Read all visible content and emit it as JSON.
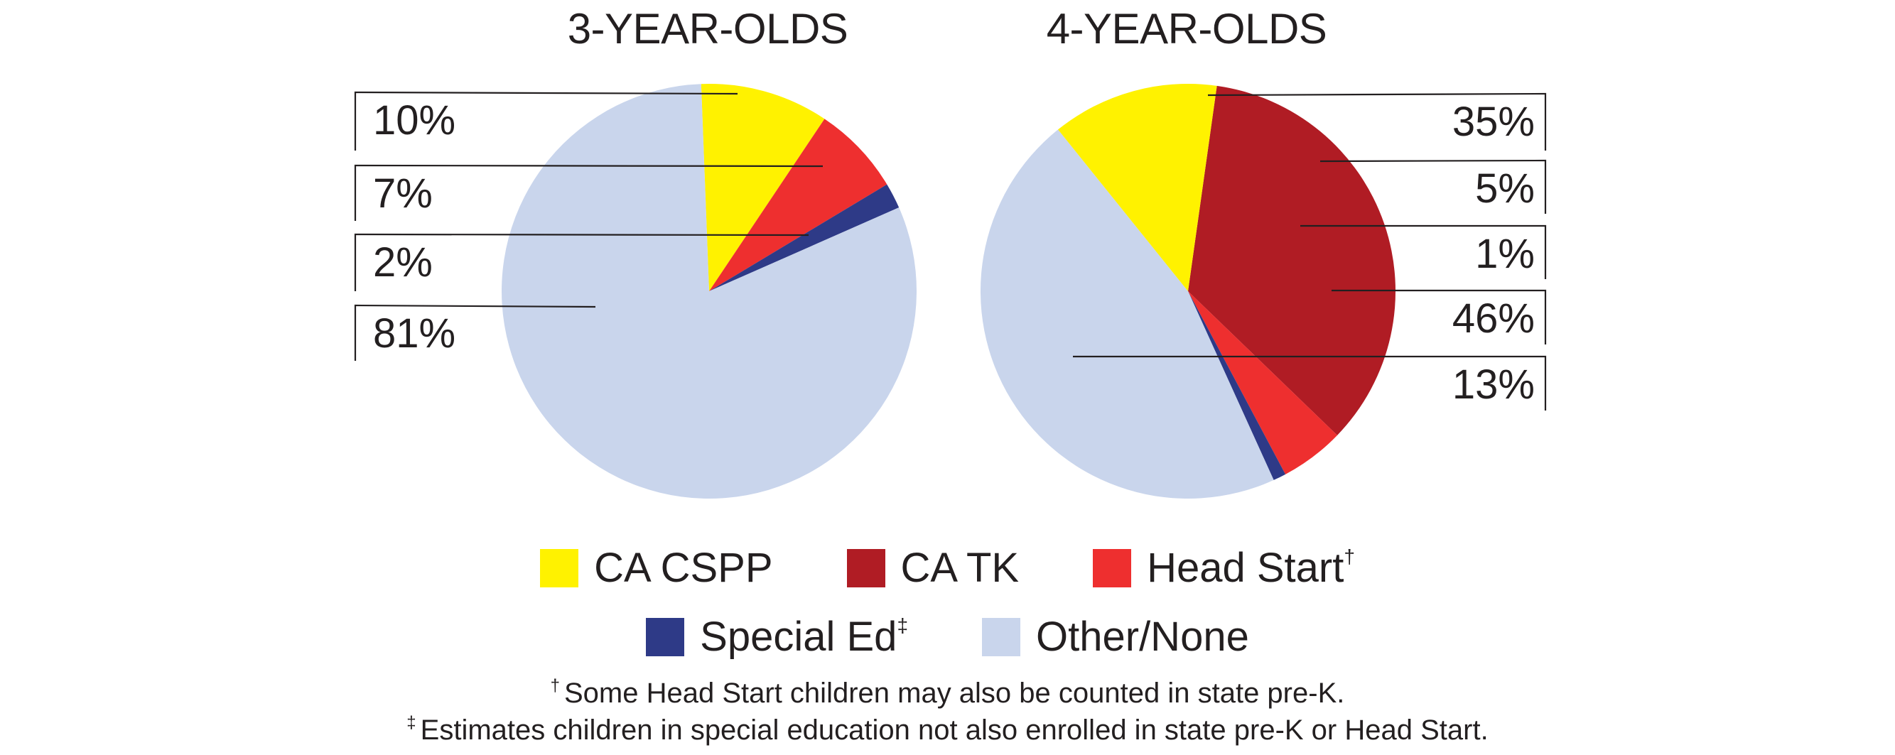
{
  "chart_data": [
    {
      "type": "pie",
      "title": "3-YEAR-OLDS",
      "slices": [
        {
          "category": "CA CSPP",
          "value": 10,
          "label": "10%"
        },
        {
          "category": "Head Start",
          "value": 7,
          "label": "7%"
        },
        {
          "category": "Special Ed",
          "value": 2,
          "label": "2%"
        },
        {
          "category": "Other/None",
          "value": 81,
          "label": "81%"
        }
      ]
    },
    {
      "type": "pie",
      "title": "4-YEAR-OLDS",
      "slices": [
        {
          "category": "CA TK",
          "value": 35,
          "label": "35%"
        },
        {
          "category": "Head Start",
          "value": 5,
          "label": "5%"
        },
        {
          "category": "Special Ed",
          "value": 1,
          "label": "1%"
        },
        {
          "category": "Other/None",
          "value": 46,
          "label": "46%"
        },
        {
          "category": "CA CSPP",
          "value": 13,
          "label": "13%"
        }
      ]
    }
  ],
  "legend": {
    "items": [
      {
        "category": "CA CSPP",
        "label": "CA CSPP",
        "mark": "",
        "color": "#fff200"
      },
      {
        "category": "CA TK",
        "label": "CA TK",
        "mark": "",
        "color": "#b01c24"
      },
      {
        "category": "Head Start",
        "label": "Head Start",
        "mark": "†",
        "color": "#ee2f2f"
      },
      {
        "category": "Special Ed",
        "label": "Special Ed",
        "mark": "‡",
        "color": "#2e3a87"
      },
      {
        "category": "Other/None",
        "label": "Other/None",
        "mark": "",
        "color": "#c9d5ec"
      }
    ],
    "placement": "bottom"
  },
  "footnotes": [
    {
      "mark": "†",
      "text": "Some Head Start children may also be counted in state pre-K."
    },
    {
      "mark": "‡",
      "text": "Estimates children in special education not also enrolled in state pre-K or Head Start."
    }
  ],
  "colors": {
    "text": "#231f20",
    "leader": "#231f20"
  }
}
